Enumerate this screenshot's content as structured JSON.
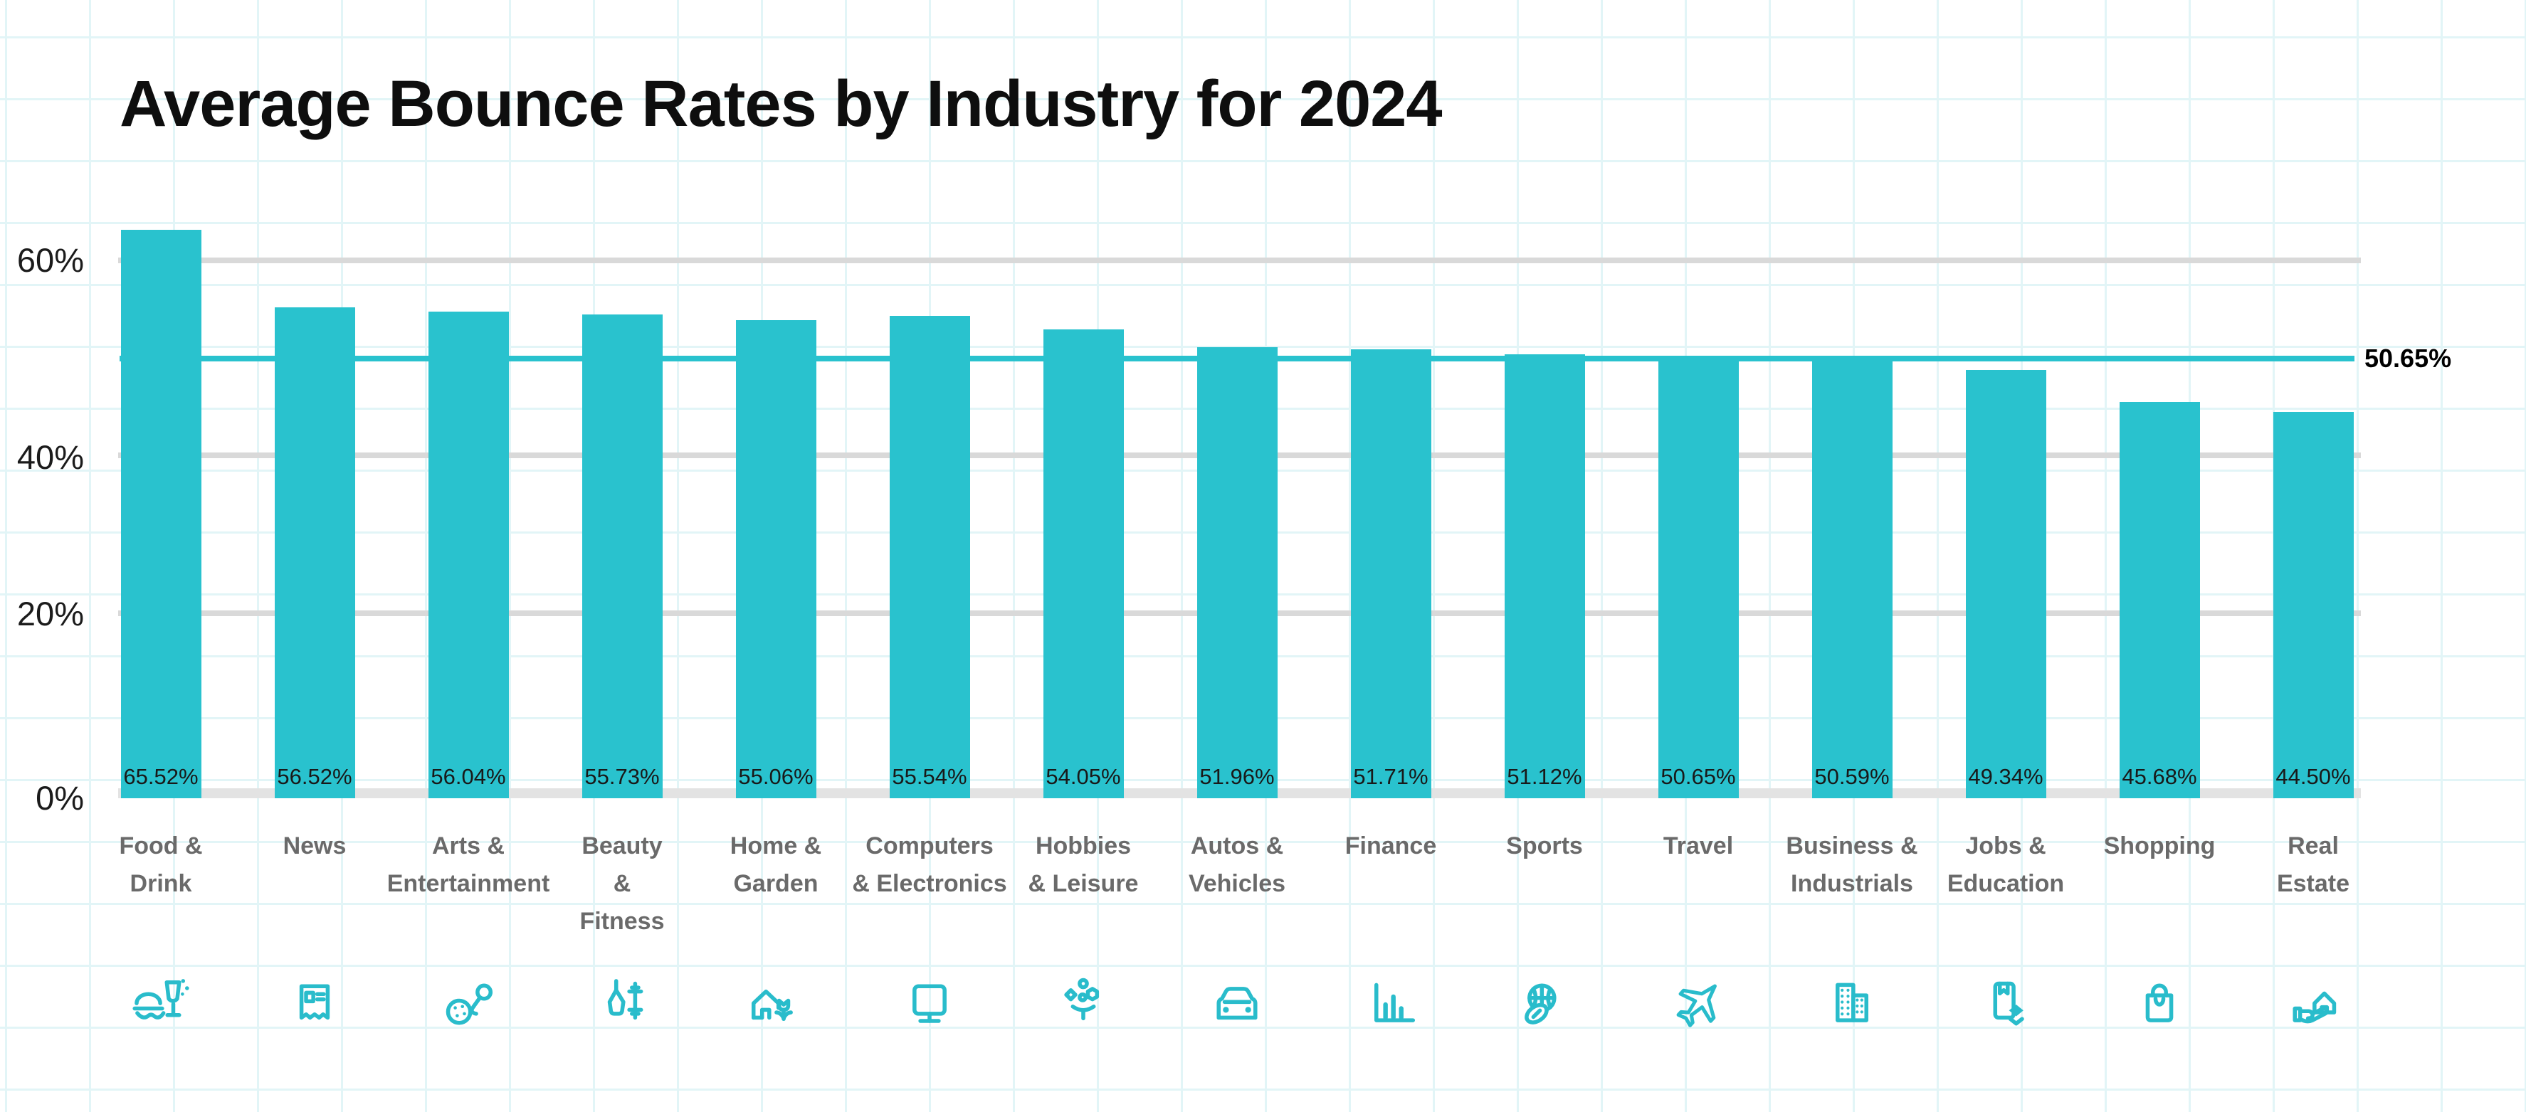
{
  "title": "Average Bounce Rates by Industry for 2024",
  "colors": {
    "bar_teal": "#29c2ce",
    "icon_teal": "#29bccb",
    "graph_paper_grid": "#e2f5f7",
    "gridline_gray": "#d9d9d9",
    "baseline_gray": "#e3e3e3",
    "category_label_gray": "#6a6a6a",
    "text_black": "#0e0e0e"
  },
  "y_axis": {
    "ticks": [
      {
        "label": "60%",
        "value": 60
      },
      {
        "label": "40%",
        "value": 40
      },
      {
        "label": "20%",
        "value": 20
      },
      {
        "label": "0%",
        "value": 0
      }
    ]
  },
  "average_line": {
    "value": 50.65,
    "label": "50.65%"
  },
  "industries": [
    {
      "id": "food-drink",
      "name_lines": [
        "Food &",
        "Drink"
      ],
      "value": 65.52,
      "value_label": "65.52%",
      "icon": "icon-food-drink",
      "icon_name": "burger-and-champagne-icon"
    },
    {
      "id": "news",
      "name_lines": [
        "News"
      ],
      "value": 56.52,
      "value_label": "56.52%",
      "icon": "icon-news",
      "icon_name": "newspaper-icon"
    },
    {
      "id": "arts-entertainment",
      "name_lines": [
        "Arts &",
        "Entertainment"
      ],
      "value": 56.04,
      "value_label": "56.04%",
      "icon": "icon-arts-entertainment",
      "icon_name": "palette-and-microphone-icon"
    },
    {
      "id": "beauty-fitness",
      "name_lines": [
        "Beauty",
        "&",
        "Fitness"
      ],
      "value": 55.73,
      "value_label": "55.73%",
      "icon": "icon-beauty-fitness",
      "icon_name": "perfume-and-dumbbell-icon"
    },
    {
      "id": "home-garden",
      "name_lines": [
        "Home &",
        "Garden"
      ],
      "value": 55.06,
      "value_label": "55.06%",
      "icon": "icon-home-garden",
      "icon_name": "house-and-flower-icon"
    },
    {
      "id": "computers-electronics",
      "name_lines": [
        "Computers",
        "& Electronics"
      ],
      "value": 55.54,
      "value_label": "55.54%",
      "icon": "icon-computers-electronics",
      "icon_name": "monitor-icon"
    },
    {
      "id": "hobbies-leisure",
      "name_lines": [
        "Hobbies",
        "& Leisure"
      ],
      "value": 54.05,
      "value_label": "54.05%",
      "icon": "icon-hobbies-leisure",
      "icon_name": "juggling-shapes-icon"
    },
    {
      "id": "autos-vehicles",
      "name_lines": [
        "Autos &",
        "Vehicles"
      ],
      "value": 51.96,
      "value_label": "51.96%",
      "icon": "icon-autos-vehicles",
      "icon_name": "car-front-icon"
    },
    {
      "id": "finance",
      "name_lines": [
        "Finance"
      ],
      "value": 51.71,
      "value_label": "51.71%",
      "icon": "icon-finance",
      "icon_name": "bar-graph-icon"
    },
    {
      "id": "sports",
      "name_lines": [
        "Sports"
      ],
      "value": 51.12,
      "value_label": "51.12%",
      "icon": "icon-sports",
      "icon_name": "basketball-and-rugby-icon"
    },
    {
      "id": "travel",
      "name_lines": [
        "Travel"
      ],
      "value": 50.65,
      "value_label": "50.65%",
      "icon": "icon-travel",
      "icon_name": "airplane-icon"
    },
    {
      "id": "business-industrials",
      "name_lines": [
        "Business &",
        "Industrials"
      ],
      "value": 50.59,
      "value_label": "50.59%",
      "icon": "icon-business-industrials",
      "icon_name": "office-buildings-icon"
    },
    {
      "id": "jobs-education",
      "name_lines": [
        "Jobs &",
        "Education"
      ],
      "value": 49.34,
      "value_label": "49.34%",
      "icon": "icon-jobs-education",
      "icon_name": "book-and-graduation-icon"
    },
    {
      "id": "shopping",
      "name_lines": [
        "Shopping"
      ],
      "value": 45.68,
      "value_label": "45.68%",
      "icon": "icon-shopping",
      "icon_name": "shopping-bag-icon"
    },
    {
      "id": "real-estate",
      "name_lines": [
        "Real",
        "Estate"
      ],
      "value": 44.5,
      "value_label": "44.50%",
      "icon": "icon-real-estate",
      "icon_name": "hand-holding-house-icon"
    }
  ],
  "chart_data": {
    "type": "bar",
    "title": "Average Bounce Rates by Industry for 2024",
    "categories": [
      "Food & Drink",
      "News",
      "Arts & Entertainment",
      "Beauty & Fitness",
      "Home & Garden",
      "Computers & Electronics",
      "Hobbies & Leisure",
      "Autos & Vehicles",
      "Finance",
      "Sports",
      "Travel",
      "Business & Industrials",
      "Jobs & Education",
      "Shopping",
      "Real Estate"
    ],
    "values": [
      65.52,
      56.52,
      56.04,
      55.73,
      55.06,
      55.54,
      54.05,
      51.96,
      51.71,
      51.12,
      50.65,
      50.59,
      49.34,
      45.68,
      44.5
    ],
    "value_labels": [
      "65.52%",
      "56.52%",
      "56.04%",
      "55.73%",
      "55.06%",
      "55.54%",
      "54.05%",
      "51.96%",
      "51.71%",
      "51.12%",
      "50.65%",
      "50.59%",
      "49.34%",
      "45.68%",
      "44.50%"
    ],
    "xlabel": "",
    "ylabel": "",
    "ylim": [
      0,
      70
    ],
    "yticks": [
      0,
      20,
      40,
      60
    ],
    "ytick_labels": [
      "0%",
      "20%",
      "40%",
      "60%"
    ],
    "grid": "horizontal gray gridlines over light graph-paper background",
    "legend": "none",
    "bar_color": "#29c2ce",
    "reference_line": {
      "value": 50.65,
      "label": "50.65%",
      "color": "#29c2ce"
    }
  }
}
